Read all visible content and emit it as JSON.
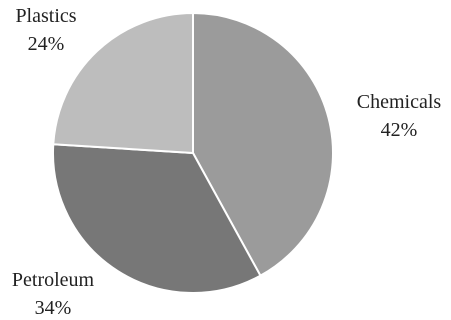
{
  "chart_data": {
    "type": "pie",
    "title": "",
    "slices": [
      {
        "label": "Chemicals",
        "value": 42,
        "value_label": "42%",
        "color": "#9b9b9b"
      },
      {
        "label": "Petroleum",
        "value": 34,
        "value_label": "34%",
        "color": "#777777"
      },
      {
        "label": "Plastics",
        "value": 24,
        "value_label": "24%",
        "color": "#bdbdbd"
      }
    ],
    "start_direction": "12 o'clock",
    "direction": "clockwise",
    "legend": "none",
    "labels_position": "outside"
  }
}
